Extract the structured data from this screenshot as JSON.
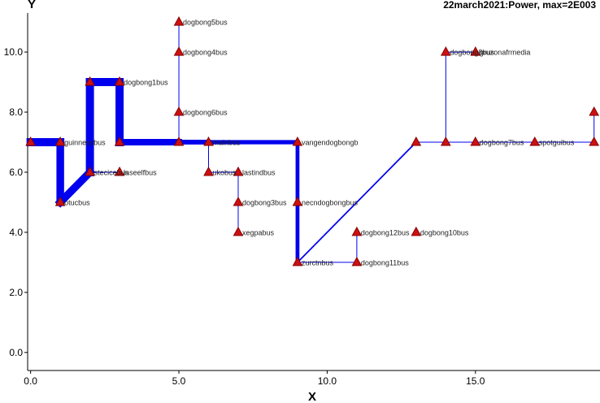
{
  "chart_data": {
    "type": "network-diagram",
    "title": "22march2021:Power, max=2E003",
    "xlabel": "X",
    "ylabel": "Y",
    "xlim": [
      -0.1,
      19.2
    ],
    "ylim": [
      -0.6,
      11.3
    ],
    "xticks": [
      0,
      5,
      10,
      15
    ],
    "xtick_labels": [
      "0.0",
      "5.0",
      "10.0",
      "15.0"
    ],
    "yticks": [
      0,
      2,
      4,
      6,
      8,
      10
    ],
    "ytick_labels": [
      "0.0",
      "2.0",
      "4.0",
      "6.0",
      "8.0",
      "10.0"
    ],
    "colors": {
      "edge": "#0000ee",
      "node_fill": "#cc1111",
      "node_stroke": "#880000",
      "axis": "#000000"
    },
    "nodes": [
      {
        "id": "n_start",
        "x": 0,
        "y": 7,
        "label": ""
      },
      {
        "id": "guinnessbus",
        "x": 1,
        "y": 7,
        "label": "guinnessbus"
      },
      {
        "id": "otucbus",
        "x": 1,
        "y": 5,
        "label": "otucbus"
      },
      {
        "id": "stecicebus",
        "x": 2,
        "y": 6,
        "label": "stecicebus"
      },
      {
        "id": "n_2_9",
        "x": 2,
        "y": 9,
        "label": ""
      },
      {
        "id": "dogbong1bus",
        "x": 3,
        "y": 9,
        "label": "dogbong1bus"
      },
      {
        "id": "n_3_7",
        "x": 3,
        "y": 7,
        "label": ""
      },
      {
        "id": "laseelfbus",
        "x": 3,
        "y": 6,
        "label": "laseelfbus"
      },
      {
        "id": "dogbong5bus",
        "x": 5,
        "y": 11,
        "label": "dogbong5bus"
      },
      {
        "id": "dogbong4bus",
        "x": 5,
        "y": 10,
        "label": "dogbong4bus"
      },
      {
        "id": "dogbong6bus",
        "x": 5,
        "y": 8,
        "label": "dogbong6bus"
      },
      {
        "id": "n_5_7",
        "x": 5,
        "y": 7,
        "label": ""
      },
      {
        "id": "n_6_7",
        "x": 6,
        "y": 7,
        "label": "mainbus"
      },
      {
        "id": "ukobus",
        "x": 6,
        "y": 6,
        "label": "ukobus"
      },
      {
        "id": "lastindbus",
        "x": 7,
        "y": 6,
        "label": "lastindbus"
      },
      {
        "id": "dogbong3bus",
        "x": 7,
        "y": 5,
        "label": "dogbong3bus"
      },
      {
        "id": "xegpabus",
        "x": 7,
        "y": 4,
        "label": "xegpabus"
      },
      {
        "id": "vangendogbongb",
        "x": 9,
        "y": 7,
        "label": "vangendogbongb"
      },
      {
        "id": "necndogbongbus",
        "x": 9,
        "y": 5,
        "label": "necndogbongbus"
      },
      {
        "id": "zurctnbus",
        "x": 9,
        "y": 3,
        "label": "zurctnbus"
      },
      {
        "id": "dogbong11bus",
        "x": 11,
        "y": 3,
        "label": "dogbong11bus"
      },
      {
        "id": "dogbong12bus",
        "x": 11,
        "y": 4,
        "label": "dogbong12bus"
      },
      {
        "id": "dogbong10bus",
        "x": 13,
        "y": 4,
        "label": "dogbong10bus"
      },
      {
        "id": "n_13_7",
        "x": 13,
        "y": 7,
        "label": ""
      },
      {
        "id": "n_14_10",
        "x": 14,
        "y": 10,
        "label": "dogbong8bus"
      },
      {
        "id": "n_15_10",
        "x": 15,
        "y": 10,
        "label": "gruzonafrmedia"
      },
      {
        "id": "n_14_7",
        "x": 14,
        "y": 7,
        "label": ""
      },
      {
        "id": "dogbong7bus",
        "x": 15,
        "y": 7,
        "label": "dogbong7bus"
      },
      {
        "id": "spotguibus",
        "x": 17,
        "y": 7,
        "label": "spotguibus"
      },
      {
        "id": "n_19_8",
        "x": 19,
        "y": 8,
        "label": ""
      },
      {
        "id": "n_19_7",
        "x": 19,
        "y": 7,
        "label": ""
      }
    ],
    "edges": [
      {
        "from": "n_start",
        "to": "guinnessbus",
        "flow": 1700
      },
      {
        "from": "guinnessbus",
        "to": "otucbus",
        "flow": 1600
      },
      {
        "from": "otucbus",
        "to": "stecicebus",
        "flow": 1600
      },
      {
        "from": "stecicebus",
        "to": "n_2_9",
        "flow": 1700
      },
      {
        "from": "n_2_9",
        "to": "dogbong1bus",
        "flow": 1700
      },
      {
        "from": "dogbong1bus",
        "to": "n_3_7",
        "flow": 1700
      },
      {
        "from": "stecicebus",
        "to": "laseelfbus",
        "flow": 50
      },
      {
        "from": "n_3_7",
        "to": "n_5_7",
        "flow": 1350
      },
      {
        "from": "n_5_7",
        "to": "dogbong6bus",
        "flow": 50
      },
      {
        "from": "dogbong6bus",
        "to": "dogbong4bus",
        "flow": 40
      },
      {
        "from": "dogbong4bus",
        "to": "dogbong5bus",
        "flow": 30
      },
      {
        "from": "n_5_7",
        "to": "n_6_7",
        "flow": 1000
      },
      {
        "from": "n_6_7",
        "to": "ukobus",
        "flow": 100
      },
      {
        "from": "ukobus",
        "to": "lastindbus",
        "flow": 60
      },
      {
        "from": "lastindbus",
        "to": "dogbong3bus",
        "flow": 40
      },
      {
        "from": "dogbong3bus",
        "to": "xegpabus",
        "flow": 30
      },
      {
        "from": "n_6_7",
        "to": "vangendogbongb",
        "flow": 900
      },
      {
        "from": "vangendogbongb",
        "to": "necndogbongbus",
        "flow": 800
      },
      {
        "from": "necndogbongbus",
        "to": "zurctnbus",
        "flow": 800
      },
      {
        "from": "zurctnbus",
        "to": "dogbong11bus",
        "flow": 40
      },
      {
        "from": "dogbong11bus",
        "to": "dogbong12bus",
        "flow": 30
      },
      {
        "from": "zurctnbus",
        "to": "n_13_7",
        "flow": 300
      },
      {
        "from": "n_13_7",
        "to": "n_14_7",
        "flow": 150
      },
      {
        "from": "n_14_7",
        "to": "n_14_10",
        "flow": 40
      },
      {
        "from": "n_14_10",
        "to": "n_15_10",
        "flow": 30
      },
      {
        "from": "n_14_7",
        "to": "dogbong7bus",
        "flow": 100
      },
      {
        "from": "dogbong7bus",
        "to": "spotguibus",
        "flow": 80
      },
      {
        "from": "spotguibus",
        "to": "n_19_7",
        "flow": 60
      },
      {
        "from": "n_19_7",
        "to": "n_19_8",
        "flow": 40
      }
    ]
  }
}
